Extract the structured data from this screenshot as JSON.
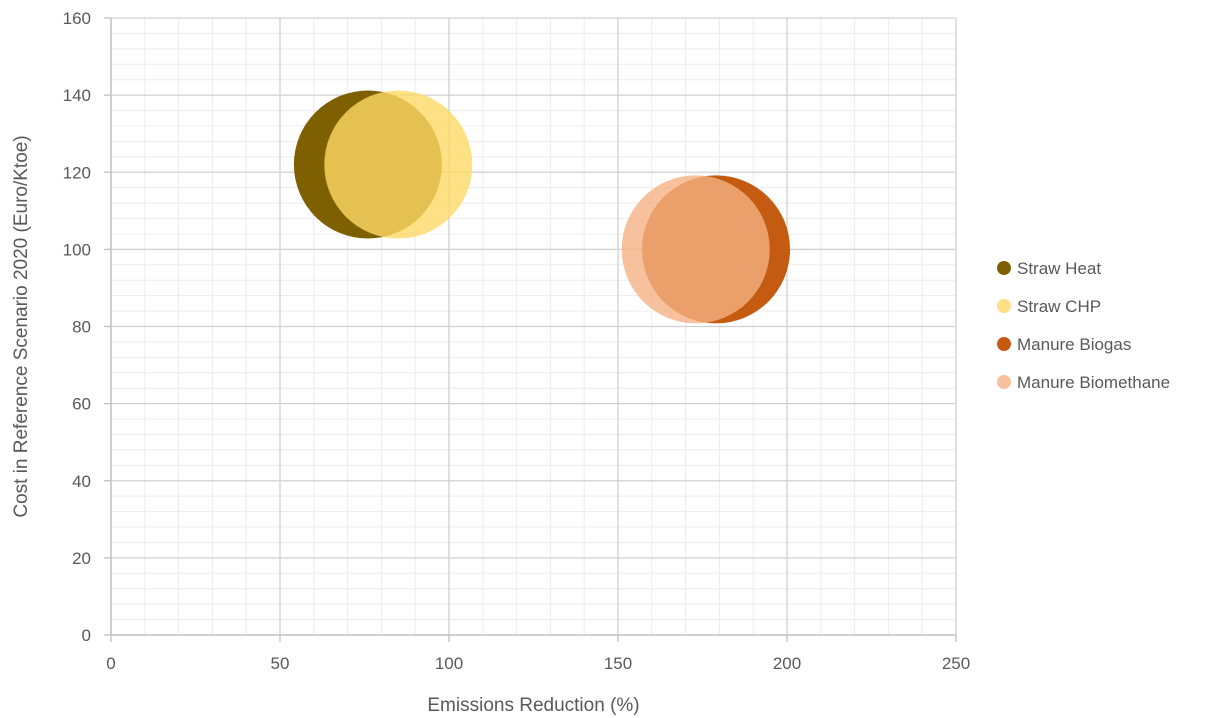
{
  "chart_data": {
    "type": "bubble",
    "title": "",
    "xlabel": "Emissions Reduction (%)",
    "ylabel": "Cost in Reference Scenario 2020 (Euro/Ktoe)",
    "xlim": [
      0,
      250
    ],
    "ylim": [
      0,
      160
    ],
    "x_major_step": 50,
    "x_minor_step": 10,
    "y_major_step": 20,
    "y_minor_step": 4,
    "grid": true,
    "legend_position": "right",
    "series": [
      {
        "name": "Straw Heat",
        "x": 76,
        "y": 122,
        "color": "#7f6000",
        "opacity": 1.0
      },
      {
        "name": "Straw CHP",
        "x": 85,
        "y": 122,
        "color": "#ffd966",
        "opacity": 0.8
      },
      {
        "name": "Manure Biogas",
        "x": 179,
        "y": 100,
        "color": "#c55a11",
        "opacity": 1.0
      },
      {
        "name": "Manure Biomethane",
        "x": 173,
        "y": 100,
        "color": "#f4b183",
        "opacity": 0.8
      }
    ]
  }
}
